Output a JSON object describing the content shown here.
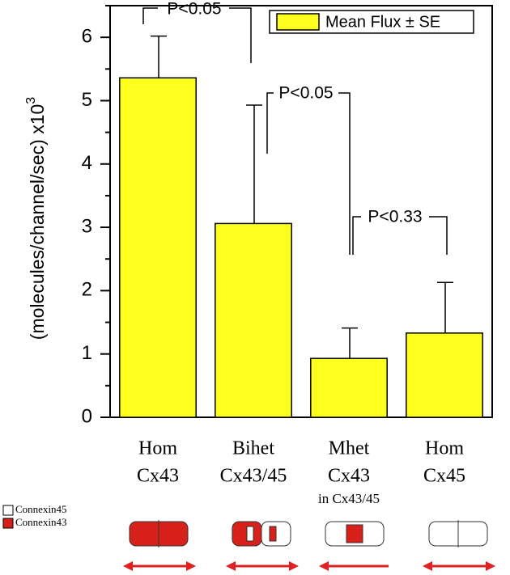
{
  "chart_data": {
    "type": "bar",
    "y_label": "(molecules/channel/sec) x10",
    "y_label_exponent": "3",
    "categories": [
      [
        "Hom",
        "Cx43"
      ],
      [
        "Bihet",
        "Cx43/45"
      ],
      [
        "Mhet",
        "Cx43",
        "in Cx43/45"
      ],
      [
        "Hom",
        "Cx45"
      ]
    ],
    "series": [
      {
        "name": "Mean Flux ± SE",
        "color": "#ffff1e",
        "values": [
          5.36,
          3.06,
          0.93,
          1.33
        ],
        "errors": [
          0.66,
          1.87,
          0.48,
          0.8
        ]
      }
    ],
    "ylim": [
      0,
      6.5
    ],
    "yticks": [
      0,
      1,
      2,
      3,
      4,
      5,
      6
    ],
    "yticks_minor": [
      0.5,
      1.5,
      2.5,
      3.5,
      4.5,
      5.5,
      6.5
    ],
    "annotations": [
      "P<0.05",
      "P<0.05",
      "P<0.33"
    ],
    "key": [
      {
        "label": "Connexin45",
        "color": "#ffffff"
      },
      {
        "label": "Connexin43",
        "color": "#d8201a"
      }
    ]
  }
}
